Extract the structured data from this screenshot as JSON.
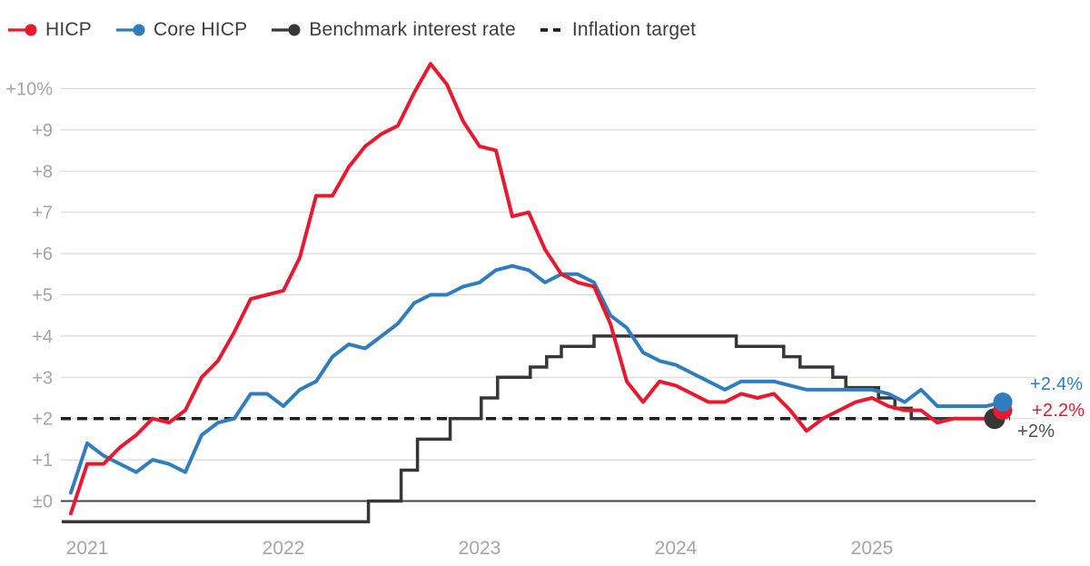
{
  "page": {
    "background": "#ffffff"
  },
  "legend": {
    "items": [
      {
        "label": "HICP",
        "color": "#e8192e",
        "marker": "line-dot"
      },
      {
        "label": "Core HICP",
        "color": "#2f7dbe",
        "marker": "line-dot"
      },
      {
        "label": "Benchmark interest rate",
        "color": "#373737",
        "marker": "line-dot"
      },
      {
        "label": "Inflation target",
        "color": "#1f1f1f",
        "marker": "dashes"
      }
    ]
  },
  "colors": {
    "grid": "#dadada",
    "zero_axis": "#454545",
    "axis_text": "#a5a5a5",
    "legend_text": "#3d3d3d"
  },
  "chart_data": {
    "type": "line",
    "title": "",
    "unit": "%",
    "frequency": "monthly",
    "x_range": {
      "start": "2020-12",
      "end": "2025-09"
    },
    "grid": "horizontal",
    "ylim": [
      -0.8,
      11.0
    ],
    "y_ticks": [
      {
        "value": 10,
        "label": "+10%"
      },
      {
        "value": 9,
        "label": "+9"
      },
      {
        "value": 8,
        "label": "+8"
      },
      {
        "value": 7,
        "label": "+7"
      },
      {
        "value": 6,
        "label": "+6"
      },
      {
        "value": 5,
        "label": "+5"
      },
      {
        "value": 4,
        "label": "+4"
      },
      {
        "value": 3,
        "label": "+3"
      },
      {
        "value": 2,
        "label": "+2"
      },
      {
        "value": 1,
        "label": "+1"
      },
      {
        "value": 0,
        "label": "±0"
      }
    ],
    "x_year_ticks": [
      {
        "label": "2021",
        "month_index": 1
      },
      {
        "label": "2022",
        "month_index": 13
      },
      {
        "label": "2023",
        "month_index": 25
      },
      {
        "label": "2024",
        "month_index": 37
      },
      {
        "label": "2025",
        "month_index": 49
      }
    ],
    "series": [
      {
        "name": "HICP",
        "type": "line",
        "color": "#e8192e",
        "values": [
          -0.3,
          0.9,
          0.9,
          1.3,
          1.6,
          2.0,
          1.9,
          2.2,
          3.0,
          3.4,
          4.1,
          4.9,
          5.0,
          5.1,
          5.9,
          7.4,
          7.4,
          8.1,
          8.6,
          8.9,
          9.1,
          9.9,
          10.6,
          10.1,
          9.2,
          8.6,
          8.5,
          6.9,
          7.0,
          6.1,
          5.5,
          5.3,
          5.2,
          4.3,
          2.9,
          2.4,
          2.9,
          2.8,
          2.6,
          2.4,
          2.4,
          2.6,
          2.5,
          2.6,
          2.2,
          1.7,
          2.0,
          2.2,
          2.4,
          2.5,
          2.3,
          2.2,
          2.2,
          1.9,
          2.0,
          2.0,
          2.0,
          2.2
        ]
      },
      {
        "name": "Core HICP",
        "type": "line",
        "color": "#2f7dbe",
        "values": [
          0.2,
          1.4,
          1.1,
          0.9,
          0.7,
          1.0,
          0.9,
          0.7,
          1.6,
          1.9,
          2.0,
          2.6,
          2.6,
          2.3,
          2.7,
          2.9,
          3.5,
          3.8,
          3.7,
          4.0,
          4.3,
          4.8,
          5.0,
          5.0,
          5.2,
          5.3,
          5.6,
          5.7,
          5.6,
          5.3,
          5.5,
          5.5,
          5.3,
          4.5,
          4.2,
          3.6,
          3.4,
          3.3,
          3.1,
          2.9,
          2.7,
          2.9,
          2.9,
          2.9,
          2.8,
          2.7,
          2.7,
          2.7,
          2.7,
          2.7,
          2.6,
          2.4,
          2.7,
          2.3,
          2.3,
          2.3,
          2.3,
          2.4
        ]
      },
      {
        "name": "Benchmark interest rate",
        "type": "step",
        "color": "#373737",
        "steps_month_index_rate": [
          [
            0,
            -0.5
          ],
          [
            18.2,
            0.0
          ],
          [
            20.2,
            0.75
          ],
          [
            21.2,
            1.5
          ],
          [
            23.2,
            2.0
          ],
          [
            25.1,
            2.5
          ],
          [
            26.1,
            3.0
          ],
          [
            28.1,
            3.25
          ],
          [
            29.1,
            3.5
          ],
          [
            30.0,
            3.75
          ],
          [
            32.0,
            4.0
          ],
          [
            40.7,
            3.75
          ],
          [
            43.6,
            3.5
          ],
          [
            44.6,
            3.25
          ],
          [
            46.6,
            3.0
          ],
          [
            47.4,
            2.75
          ],
          [
            49.4,
            2.5
          ],
          [
            50.4,
            2.25
          ],
          [
            51.4,
            2.0
          ],
          [
            56.5,
            2.0
          ]
        ]
      },
      {
        "name": "Inflation target",
        "type": "dashed-constant",
        "color": "#1f1f1f",
        "value": 2.0
      }
    ],
    "end_labels": [
      {
        "text": "+2.4%",
        "series": "Core HICP",
        "color": "#2f7dbe"
      },
      {
        "text": "+2.2%",
        "series": "HICP",
        "color": "#e8192e"
      },
      {
        "text": "+2%",
        "series": "Benchmark interest rate",
        "color": "#4d4d4d"
      }
    ]
  }
}
